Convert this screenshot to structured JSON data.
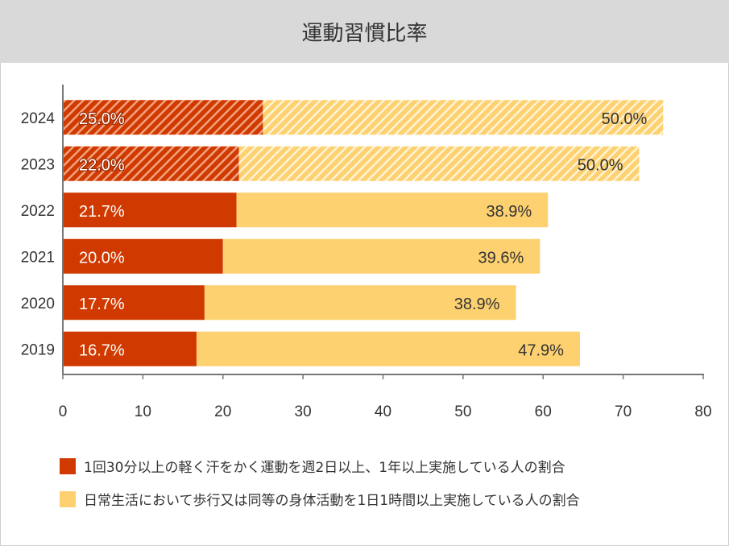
{
  "chart_data": {
    "type": "bar",
    "orientation": "horizontal",
    "stacked": true,
    "title": "運動習慣比率",
    "categories": [
      "2024",
      "2023",
      "2022",
      "2021",
      "2020",
      "2019"
    ],
    "series": [
      {
        "name": "1回30分以上の軽く汗をかく運動を週2日以上、1年以上実施している人の割合",
        "color": "#d03a00",
        "values": [
          25.0,
          22.0,
          21.7,
          20.0,
          17.7,
          16.7
        ],
        "labels": [
          "25.0%",
          "22.0%",
          "21.7%",
          "20.0%",
          "17.7%",
          "16.7%"
        ]
      },
      {
        "name": "日常生活において歩行又は同等の身体活動を1日1時間以上実施している人の割合",
        "color": "#fdd170",
        "values": [
          50.0,
          50.0,
          38.9,
          39.6,
          38.9,
          47.9
        ],
        "labels": [
          "50.0%",
          "50.0%",
          "38.9%",
          "39.6%",
          "38.9%",
          "47.9%"
        ]
      }
    ],
    "hatched_categories": [
      "2024",
      "2023"
    ],
    "xlim": [
      0,
      80
    ],
    "xticks": [
      "0",
      "10",
      "20",
      "30",
      "40",
      "50",
      "60",
      "70",
      "80"
    ],
    "legend_position": "bottom"
  }
}
